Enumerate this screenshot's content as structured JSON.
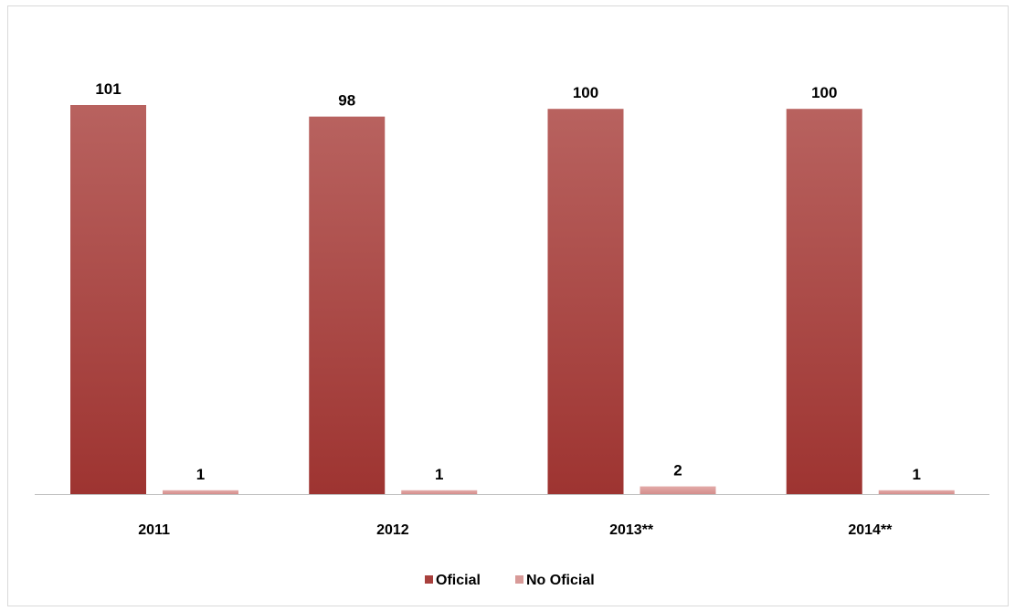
{
  "chart_data": {
    "type": "bar",
    "categories": [
      "2011",
      "2012",
      "2013**",
      "2014**"
    ],
    "series": [
      {
        "name": "Oficial",
        "values": [
          101,
          98,
          100,
          100
        ],
        "color": "#a8403d"
      },
      {
        "name": "No Oficial",
        "values": [
          1,
          1,
          2,
          1
        ],
        "color": "#d89a98"
      }
    ],
    "ylim": [
      0,
      101
    ],
    "grid": false,
    "legend_position": "bottom",
    "data_labels": true
  }
}
